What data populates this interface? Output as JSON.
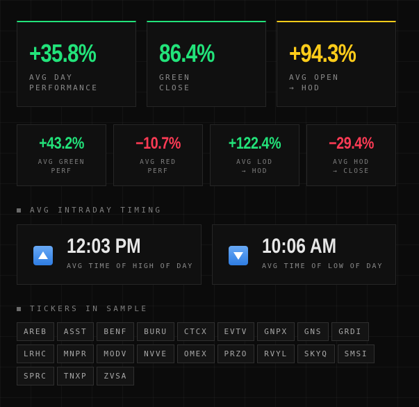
{
  "colors": {
    "green": "#22e37a",
    "red": "#ff3b55",
    "yellow": "#ffcc1a",
    "accent_blue": "#4a90e8"
  },
  "top_stats": [
    {
      "value": "+35.8%",
      "label": "AVG DAY\nPERFORMANCE",
      "color": "green"
    },
    {
      "value": "86.4%",
      "label": "GREEN\nCLOSE",
      "color": "green"
    },
    {
      "value": "+94.3%",
      "label": "AVG OPEN\n→ HOD",
      "color": "yellow"
    }
  ],
  "secondary_stats": [
    {
      "value": "+43.2%",
      "label": "AVG GREEN\nPERF",
      "color": "green"
    },
    {
      "value": "−10.7%",
      "label": "AVG RED\nPERF",
      "color": "red"
    },
    {
      "value": "+122.4%",
      "label": "AVG LOD\n→ HOD",
      "color": "green"
    },
    {
      "value": "−29.4%",
      "label": "AVG HOD\n→ CLOSE",
      "color": "red"
    }
  ],
  "timing_section": {
    "title": "AVG INTRADAY TIMING",
    "high": {
      "time": "12:03 PM",
      "label": "AVG TIME OF HIGH OF DAY",
      "icon": "arrow-up-icon"
    },
    "low": {
      "time": "10:06 AM",
      "label": "AVG TIME OF LOW OF DAY",
      "icon": "arrow-down-icon"
    }
  },
  "tickers_section": {
    "title": "TICKERS IN SAMPLE",
    "tickers": [
      "AREB",
      "ASST",
      "BENF",
      "BURU",
      "CTCX",
      "EVTV",
      "GNPX",
      "GNS",
      "GRDI",
      "LRHC",
      "MNPR",
      "MODV",
      "NVVE",
      "OMEX",
      "PRZO",
      "RVYL",
      "SKYQ",
      "SMSI",
      "SPRC",
      "TNXP",
      "ZVSA"
    ]
  }
}
